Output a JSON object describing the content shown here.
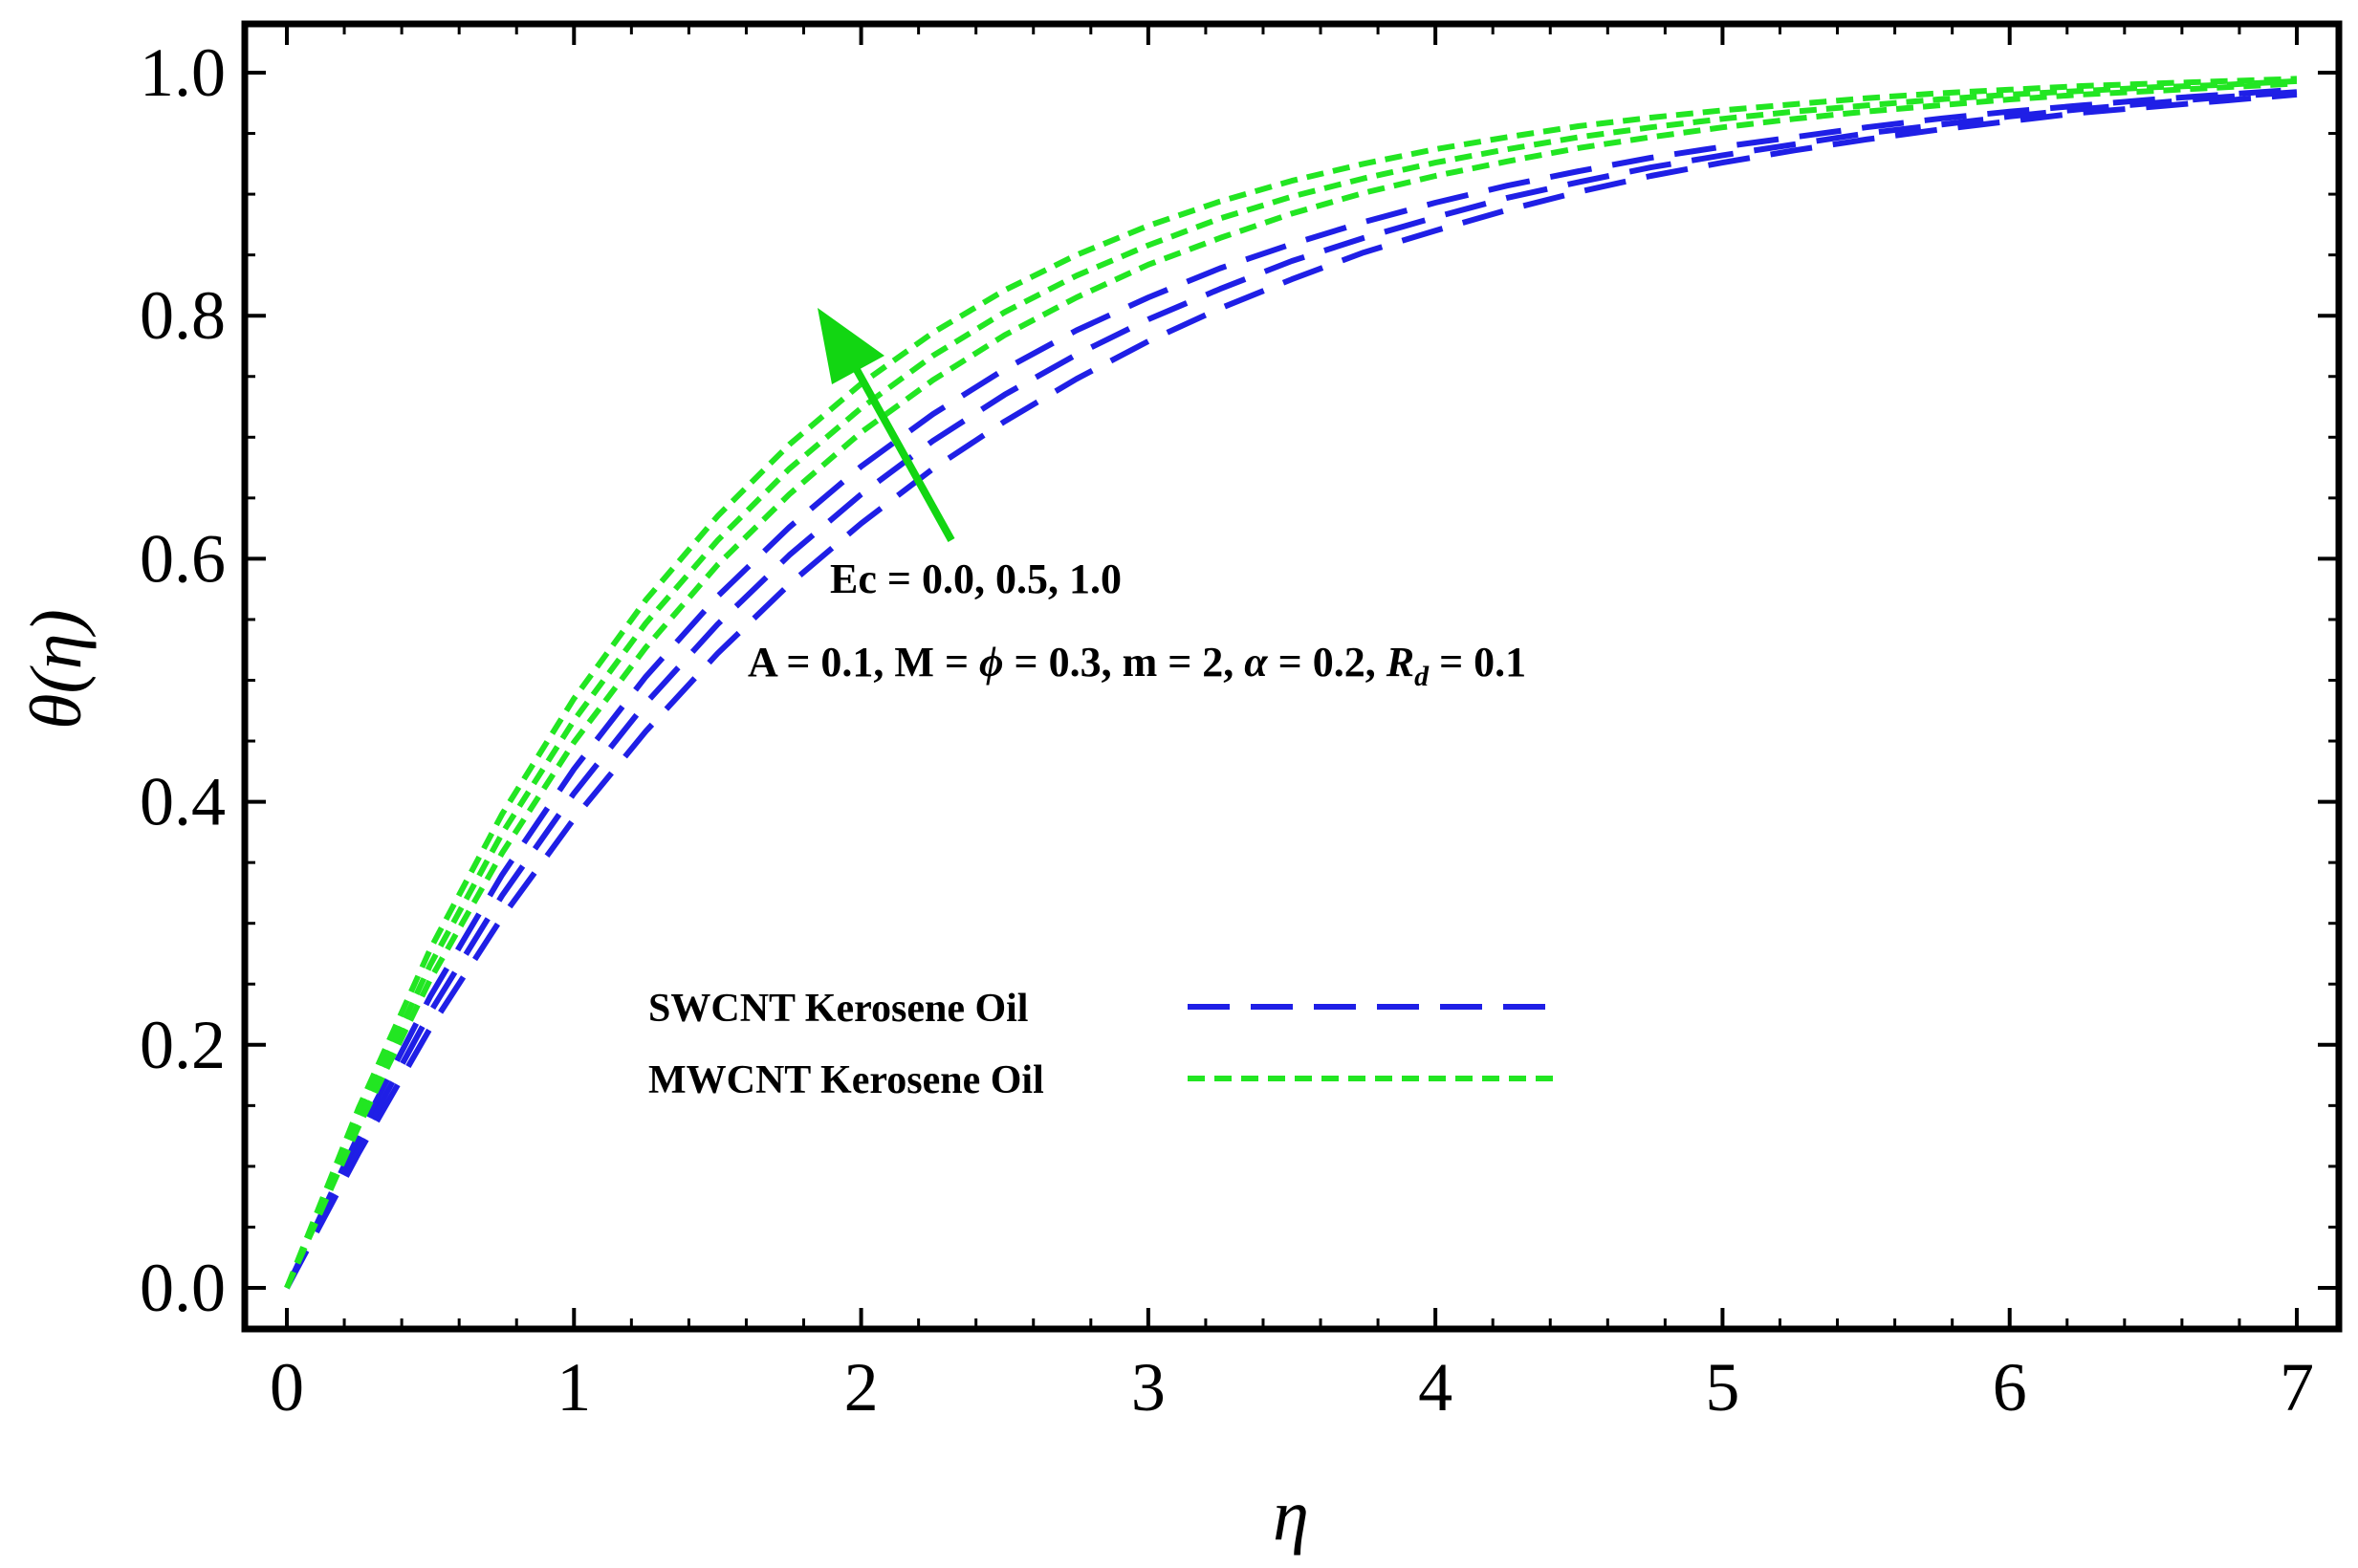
{
  "chart_data": {
    "type": "line",
    "xlabel": "η",
    "ylabel": "θ(η)",
    "xlim": [
      0,
      7
    ],
    "ylim": [
      0,
      1
    ],
    "x_ticks": [
      "0",
      "1",
      "2",
      "3",
      "4",
      "5",
      "6",
      "7"
    ],
    "y_ticks": [
      "0.0",
      "0.2",
      "0.4",
      "0.6",
      "0.8",
      "1.0"
    ],
    "grid": false,
    "legend_position": "center-left",
    "legend": [
      {
        "label": "SWCNT Kerosene Oil",
        "color": "#1f1fe6",
        "dash": "long-dash"
      },
      {
        "label": "MWCNT Kerosene Oil",
        "color": "#22e622",
        "dash": "short-dash"
      }
    ],
    "annotations": {
      "arrow_label": "Ec = 0.0, 0.5, 1.0",
      "params_prefix": "A = 0.1, M = ",
      "params_phi": "ϕ",
      "params_mid": " = 0.3, m = 2, ",
      "params_alpha": "α",
      "params_mid2": " = 0.2, ",
      "params_R": "R",
      "params_Rsub": "d",
      "params_suffix": " = 0.1",
      "arrow_color": "#12d612"
    },
    "x": [
      0,
      0.25,
      0.5,
      0.75,
      1,
      1.25,
      1.5,
      1.75,
      2,
      2.25,
      2.5,
      2.75,
      3,
      3.25,
      3.5,
      3.75,
      4,
      4.25,
      4.5,
      4.75,
      5,
      5.25,
      5.5,
      5.75,
      6,
      6.25,
      6.5,
      6.75,
      7
    ],
    "series": [
      {
        "fluid": "SWCNT",
        "Ec": 0.0,
        "color": "#1f1fe6",
        "values": [
          0,
          0.111,
          0.214,
          0.305,
          0.386,
          0.458,
          0.522,
          0.579,
          0.629,
          0.674,
          0.713,
          0.748,
          0.779,
          0.806,
          0.83,
          0.852,
          0.87,
          0.887,
          0.902,
          0.915,
          0.926,
          0.936,
          0.945,
          0.953,
          0.96,
          0.967,
          0.972,
          0.977,
          0.982
        ]
      },
      {
        "fluid": "SWCNT",
        "Ec": 0.5,
        "color": "#1f1fe6",
        "values": [
          0,
          0.118,
          0.227,
          0.323,
          0.407,
          0.481,
          0.546,
          0.603,
          0.653,
          0.697,
          0.735,
          0.768,
          0.797,
          0.822,
          0.845,
          0.864,
          0.881,
          0.897,
          0.91,
          0.922,
          0.932,
          0.941,
          0.95,
          0.957,
          0.964,
          0.97,
          0.975,
          0.98,
          0.984
        ]
      },
      {
        "fluid": "SWCNT",
        "Ec": 1.0,
        "color": "#1f1fe6",
        "values": [
          0,
          0.126,
          0.24,
          0.34,
          0.427,
          0.503,
          0.569,
          0.626,
          0.676,
          0.719,
          0.756,
          0.788,
          0.815,
          0.839,
          0.859,
          0.877,
          0.893,
          0.907,
          0.919,
          0.93,
          0.939,
          0.947,
          0.955,
          0.962,
          0.968,
          0.973,
          0.978,
          0.982,
          0.986
        ]
      },
      {
        "fluid": "MWCNT",
        "Ec": 0.0,
        "color": "#22e622",
        "values": [
          0,
          0.133,
          0.254,
          0.358,
          0.449,
          0.527,
          0.595,
          0.653,
          0.704,
          0.747,
          0.784,
          0.815,
          0.842,
          0.864,
          0.884,
          0.901,
          0.915,
          0.927,
          0.938,
          0.947,
          0.955,
          0.962,
          0.968,
          0.973,
          0.978,
          0.982,
          0.985,
          0.988,
          0.991
        ]
      },
      {
        "fluid": "MWCNT",
        "Ec": 0.5,
        "color": "#22e622",
        "values": [
          0,
          0.14,
          0.266,
          0.374,
          0.467,
          0.547,
          0.615,
          0.674,
          0.724,
          0.767,
          0.803,
          0.833,
          0.858,
          0.88,
          0.898,
          0.913,
          0.926,
          0.937,
          0.947,
          0.955,
          0.962,
          0.968,
          0.973,
          0.978,
          0.982,
          0.985,
          0.988,
          0.99,
          0.993
        ]
      },
      {
        "fluid": "MWCNT",
        "Ec": 1.0,
        "color": "#22e622",
        "values": [
          0,
          0.148,
          0.279,
          0.39,
          0.485,
          0.566,
          0.635,
          0.694,
          0.744,
          0.786,
          0.821,
          0.85,
          0.874,
          0.894,
          0.911,
          0.925,
          0.937,
          0.947,
          0.956,
          0.963,
          0.969,
          0.974,
          0.979,
          0.983,
          0.986,
          0.989,
          0.991,
          0.993,
          0.995
        ]
      }
    ]
  }
}
